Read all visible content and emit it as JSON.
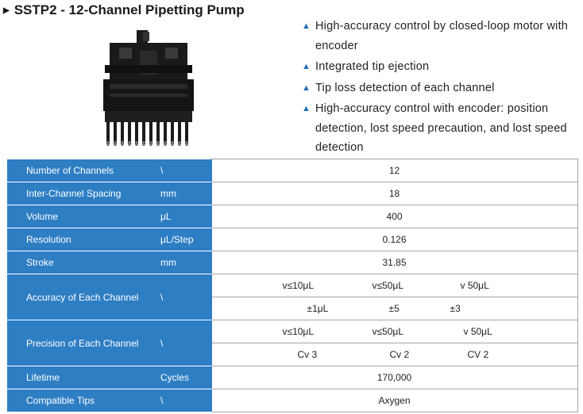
{
  "header": {
    "title": "SSTP2 - 12-Channel Pipetting Pump"
  },
  "features": [
    {
      "icon": "triangle-bullet-icon",
      "text": "High-accuracy control by closed-loop motor with encoder"
    },
    {
      "icon": "triangle-bullet-icon",
      "text": "Integrated tip ejection"
    },
    {
      "icon": "triangle-bullet-icon",
      "text": "Tip loss detection of each channel"
    },
    {
      "icon": "triangle-bullet-icon",
      "text": "High-accuracy control with encoder: position detection, lost speed precaution, and lost speed detection"
    }
  ],
  "colors": {
    "header_cell": "#2e7ec4",
    "bullet": "#1e6fb8",
    "border": "#a5a5a5"
  },
  "table": {
    "rows": [
      {
        "label": "Number of Channels",
        "unit": "\\",
        "value": "12"
      },
      {
        "label": "Inter-Channel Spacing",
        "unit": "mm",
        "value": "18"
      },
      {
        "label": "Volume",
        "unit": "μL",
        "value": "400"
      },
      {
        "label": "Resolution",
        "unit": "μL/Step",
        "value": "0.126"
      },
      {
        "label": "Stroke",
        "unit": "mm",
        "value": "31.85"
      }
    ],
    "accuracy": {
      "label": "Accuracy of Each Channel",
      "unit": "\\",
      "ranges": [
        "v≤10μL",
        "v≤50μL",
        "v 50μL"
      ],
      "values": [
        "±1μL",
        "±5",
        "±3"
      ]
    },
    "precision": {
      "label": "Precision of Each Channel",
      "unit": "\\",
      "ranges": [
        "v≤10μL",
        "v≤50μL",
        "v 50μL"
      ],
      "values": [
        "Cv 3",
        "Cv 2",
        "CV 2"
      ]
    },
    "lifetime": {
      "label": "Lifetime",
      "unit": "Cycles",
      "value": "170,000"
    },
    "tips": {
      "label": "Compatible Tips",
      "unit": "\\",
      "value": "Axygen"
    }
  }
}
